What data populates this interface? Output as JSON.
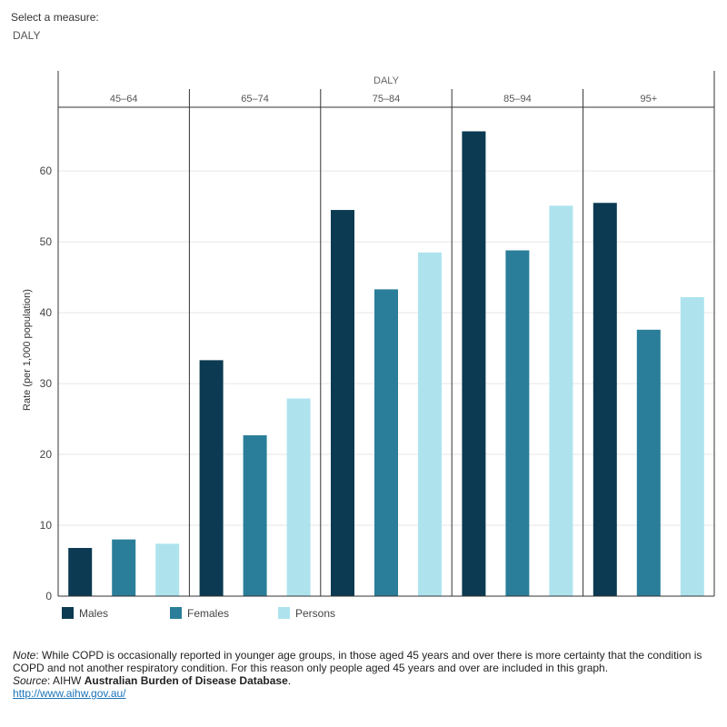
{
  "measure": {
    "label": "Select a measure:",
    "selected": "DALY"
  },
  "chart_data": {
    "type": "bar",
    "title": "DALY",
    "panels": [
      "45–64",
      "65–74",
      "75–84",
      "85–94",
      "95+"
    ],
    "series": [
      {
        "name": "Males",
        "color": "#0b3a52",
        "values": [
          6.8,
          33.3,
          54.5,
          65.6,
          55.5
        ]
      },
      {
        "name": "Females",
        "color": "#2a7e99",
        "values": [
          8.0,
          22.7,
          43.3,
          48.8,
          37.6
        ]
      },
      {
        "name": "Persons",
        "color": "#aee3ee",
        "values": [
          7.4,
          27.9,
          48.5,
          55.1,
          42.2
        ]
      }
    ],
    "ylabel": "Rate (per 1,000 population)",
    "xlabel": "",
    "ylim": [
      0,
      69
    ],
    "yticks": [
      0,
      10,
      20,
      30,
      40,
      50,
      60
    ],
    "grid": true,
    "legend_position": "bottom-left"
  },
  "notes": {
    "note_label": "Note",
    "note_text": ": While COPD is occasionally reported in younger age groups, in those aged 45 years and over there is more certainty that the condition is COPD and not another respiratory condition. For this reason only people aged 45 years and over are included in this graph.",
    "source_label": "Source",
    "source_text": ": AIHW ",
    "source_bold": "Australian Burden of Disease Database",
    "source_end": ".",
    "link": "http://www.aihw.gov.au/"
  }
}
